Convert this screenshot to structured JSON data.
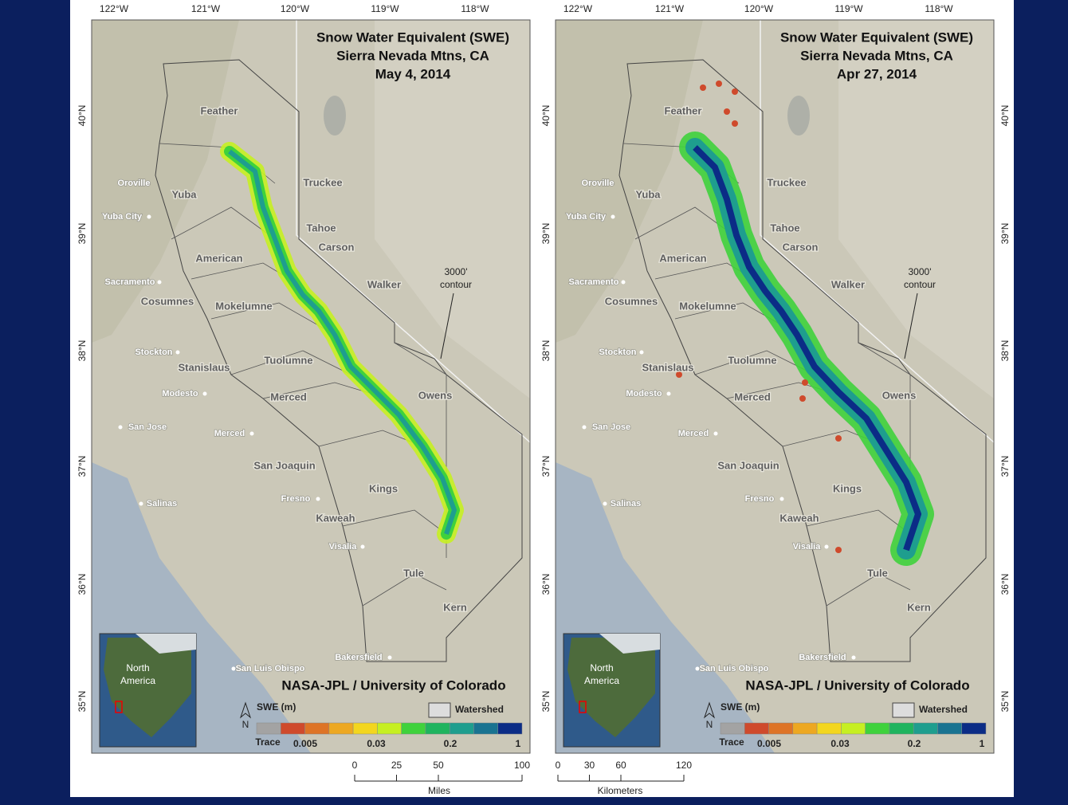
{
  "maps": [
    {
      "title_lines": [
        "Snow Water Equivalent (SWE)",
        "Sierra Nevada Mtns, CA",
        "May 4, 2014"
      ]
    },
    {
      "title_lines": [
        "Snow Water Equivalent (SWE)",
        "Sierra Nevada Mtns, CA",
        "Apr 27, 2014"
      ]
    }
  ],
  "lon_labels": [
    "122°W",
    "121°W",
    "120°W",
    "119°W",
    "118°W"
  ],
  "lat_labels": [
    "40°N",
    "39°N",
    "38°N",
    "37°N",
    "36°N",
    "35°N"
  ],
  "watersheds": [
    "Feather",
    "Yuba",
    "Truckee",
    "Tahoe",
    "Carson",
    "American",
    "Walker",
    "Cosumnes",
    "Mokelumne",
    "Tuolumne",
    "Stanislaus",
    "Merced",
    "Owens",
    "San Joaquin",
    "Kings",
    "Kaweah",
    "Tule",
    "Kern"
  ],
  "cities": [
    "Oroville",
    "Yuba City",
    "Sacramento",
    "Stockton",
    "Modesto",
    "San Jose",
    "Merced",
    "Fresno",
    "Salinas",
    "Visalia",
    "Bakersfield",
    "San Luis Obispo"
  ],
  "contour_label": [
    "3000'",
    "contour"
  ],
  "credit": "NASA-JPL / University of Colorado",
  "legend": {
    "title": "SWE (m)",
    "watershed": "Watershed",
    "trace": "Trace",
    "breaks": [
      0.005,
      0.03,
      0.2,
      1
    ],
    "colors": [
      "#a3a3a3",
      "#cf4a2c",
      "#de7426",
      "#eda821",
      "#f3d61e",
      "#c6ef22",
      "#3fd23c",
      "#1fb45e",
      "#1e9e8e",
      "#197391",
      "#0b2c86"
    ]
  },
  "inset": {
    "label": [
      "North",
      "America"
    ],
    "north": "N"
  },
  "scale_miles": {
    "label": "Miles",
    "ticks": [
      0,
      25,
      50,
      100
    ]
  },
  "scale_km": {
    "label": "Kilometers",
    "ticks": [
      0,
      30,
      60,
      120
    ]
  }
}
